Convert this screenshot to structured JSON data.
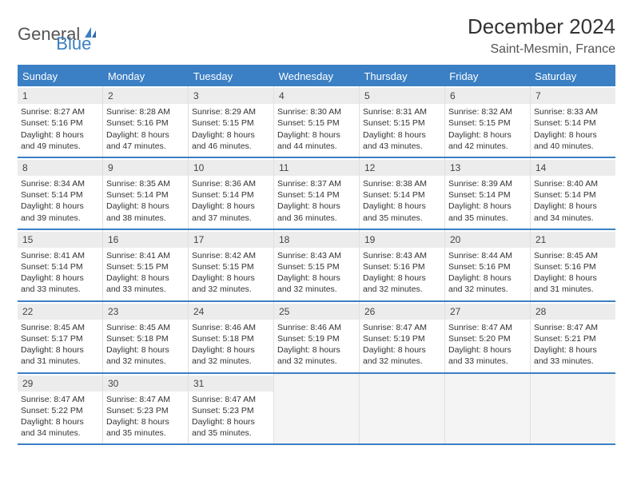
{
  "logo": {
    "word1": "General",
    "word2": "Blue"
  },
  "title": "December 2024",
  "location": "Saint-Mesmin, France",
  "colors": {
    "accent": "#3b7fc4",
    "header_bg": "#3b7fc4",
    "header_text": "#ffffff",
    "daynum_bg": "#ececec",
    "text": "#333333",
    "empty_bg": "#f4f4f4"
  },
  "dow": [
    "Sunday",
    "Monday",
    "Tuesday",
    "Wednesday",
    "Thursday",
    "Friday",
    "Saturday"
  ],
  "weeks": [
    [
      {
        "n": "1",
        "sr": "Sunrise: 8:27 AM",
        "ss": "Sunset: 5:16 PM",
        "d1": "Daylight: 8 hours",
        "d2": "and 49 minutes."
      },
      {
        "n": "2",
        "sr": "Sunrise: 8:28 AM",
        "ss": "Sunset: 5:16 PM",
        "d1": "Daylight: 8 hours",
        "d2": "and 47 minutes."
      },
      {
        "n": "3",
        "sr": "Sunrise: 8:29 AM",
        "ss": "Sunset: 5:15 PM",
        "d1": "Daylight: 8 hours",
        "d2": "and 46 minutes."
      },
      {
        "n": "4",
        "sr": "Sunrise: 8:30 AM",
        "ss": "Sunset: 5:15 PM",
        "d1": "Daylight: 8 hours",
        "d2": "and 44 minutes."
      },
      {
        "n": "5",
        "sr": "Sunrise: 8:31 AM",
        "ss": "Sunset: 5:15 PM",
        "d1": "Daylight: 8 hours",
        "d2": "and 43 minutes."
      },
      {
        "n": "6",
        "sr": "Sunrise: 8:32 AM",
        "ss": "Sunset: 5:15 PM",
        "d1": "Daylight: 8 hours",
        "d2": "and 42 minutes."
      },
      {
        "n": "7",
        "sr": "Sunrise: 8:33 AM",
        "ss": "Sunset: 5:14 PM",
        "d1": "Daylight: 8 hours",
        "d2": "and 40 minutes."
      }
    ],
    [
      {
        "n": "8",
        "sr": "Sunrise: 8:34 AM",
        "ss": "Sunset: 5:14 PM",
        "d1": "Daylight: 8 hours",
        "d2": "and 39 minutes."
      },
      {
        "n": "9",
        "sr": "Sunrise: 8:35 AM",
        "ss": "Sunset: 5:14 PM",
        "d1": "Daylight: 8 hours",
        "d2": "and 38 minutes."
      },
      {
        "n": "10",
        "sr": "Sunrise: 8:36 AM",
        "ss": "Sunset: 5:14 PM",
        "d1": "Daylight: 8 hours",
        "d2": "and 37 minutes."
      },
      {
        "n": "11",
        "sr": "Sunrise: 8:37 AM",
        "ss": "Sunset: 5:14 PM",
        "d1": "Daylight: 8 hours",
        "d2": "and 36 minutes."
      },
      {
        "n": "12",
        "sr": "Sunrise: 8:38 AM",
        "ss": "Sunset: 5:14 PM",
        "d1": "Daylight: 8 hours",
        "d2": "and 35 minutes."
      },
      {
        "n": "13",
        "sr": "Sunrise: 8:39 AM",
        "ss": "Sunset: 5:14 PM",
        "d1": "Daylight: 8 hours",
        "d2": "and 35 minutes."
      },
      {
        "n": "14",
        "sr": "Sunrise: 8:40 AM",
        "ss": "Sunset: 5:14 PM",
        "d1": "Daylight: 8 hours",
        "d2": "and 34 minutes."
      }
    ],
    [
      {
        "n": "15",
        "sr": "Sunrise: 8:41 AM",
        "ss": "Sunset: 5:14 PM",
        "d1": "Daylight: 8 hours",
        "d2": "and 33 minutes."
      },
      {
        "n": "16",
        "sr": "Sunrise: 8:41 AM",
        "ss": "Sunset: 5:15 PM",
        "d1": "Daylight: 8 hours",
        "d2": "and 33 minutes."
      },
      {
        "n": "17",
        "sr": "Sunrise: 8:42 AM",
        "ss": "Sunset: 5:15 PM",
        "d1": "Daylight: 8 hours",
        "d2": "and 32 minutes."
      },
      {
        "n": "18",
        "sr": "Sunrise: 8:43 AM",
        "ss": "Sunset: 5:15 PM",
        "d1": "Daylight: 8 hours",
        "d2": "and 32 minutes."
      },
      {
        "n": "19",
        "sr": "Sunrise: 8:43 AM",
        "ss": "Sunset: 5:16 PM",
        "d1": "Daylight: 8 hours",
        "d2": "and 32 minutes."
      },
      {
        "n": "20",
        "sr": "Sunrise: 8:44 AM",
        "ss": "Sunset: 5:16 PM",
        "d1": "Daylight: 8 hours",
        "d2": "and 32 minutes."
      },
      {
        "n": "21",
        "sr": "Sunrise: 8:45 AM",
        "ss": "Sunset: 5:16 PM",
        "d1": "Daylight: 8 hours",
        "d2": "and 31 minutes."
      }
    ],
    [
      {
        "n": "22",
        "sr": "Sunrise: 8:45 AM",
        "ss": "Sunset: 5:17 PM",
        "d1": "Daylight: 8 hours",
        "d2": "and 31 minutes."
      },
      {
        "n": "23",
        "sr": "Sunrise: 8:45 AM",
        "ss": "Sunset: 5:18 PM",
        "d1": "Daylight: 8 hours",
        "d2": "and 32 minutes."
      },
      {
        "n": "24",
        "sr": "Sunrise: 8:46 AM",
        "ss": "Sunset: 5:18 PM",
        "d1": "Daylight: 8 hours",
        "d2": "and 32 minutes."
      },
      {
        "n": "25",
        "sr": "Sunrise: 8:46 AM",
        "ss": "Sunset: 5:19 PM",
        "d1": "Daylight: 8 hours",
        "d2": "and 32 minutes."
      },
      {
        "n": "26",
        "sr": "Sunrise: 8:47 AM",
        "ss": "Sunset: 5:19 PM",
        "d1": "Daylight: 8 hours",
        "d2": "and 32 minutes."
      },
      {
        "n": "27",
        "sr": "Sunrise: 8:47 AM",
        "ss": "Sunset: 5:20 PM",
        "d1": "Daylight: 8 hours",
        "d2": "and 33 minutes."
      },
      {
        "n": "28",
        "sr": "Sunrise: 8:47 AM",
        "ss": "Sunset: 5:21 PM",
        "d1": "Daylight: 8 hours",
        "d2": "and 33 minutes."
      }
    ],
    [
      {
        "n": "29",
        "sr": "Sunrise: 8:47 AM",
        "ss": "Sunset: 5:22 PM",
        "d1": "Daylight: 8 hours",
        "d2": "and 34 minutes."
      },
      {
        "n": "30",
        "sr": "Sunrise: 8:47 AM",
        "ss": "Sunset: 5:23 PM",
        "d1": "Daylight: 8 hours",
        "d2": "and 35 minutes."
      },
      {
        "n": "31",
        "sr": "Sunrise: 8:47 AM",
        "ss": "Sunset: 5:23 PM",
        "d1": "Daylight: 8 hours",
        "d2": "and 35 minutes."
      },
      null,
      null,
      null,
      null
    ]
  ]
}
